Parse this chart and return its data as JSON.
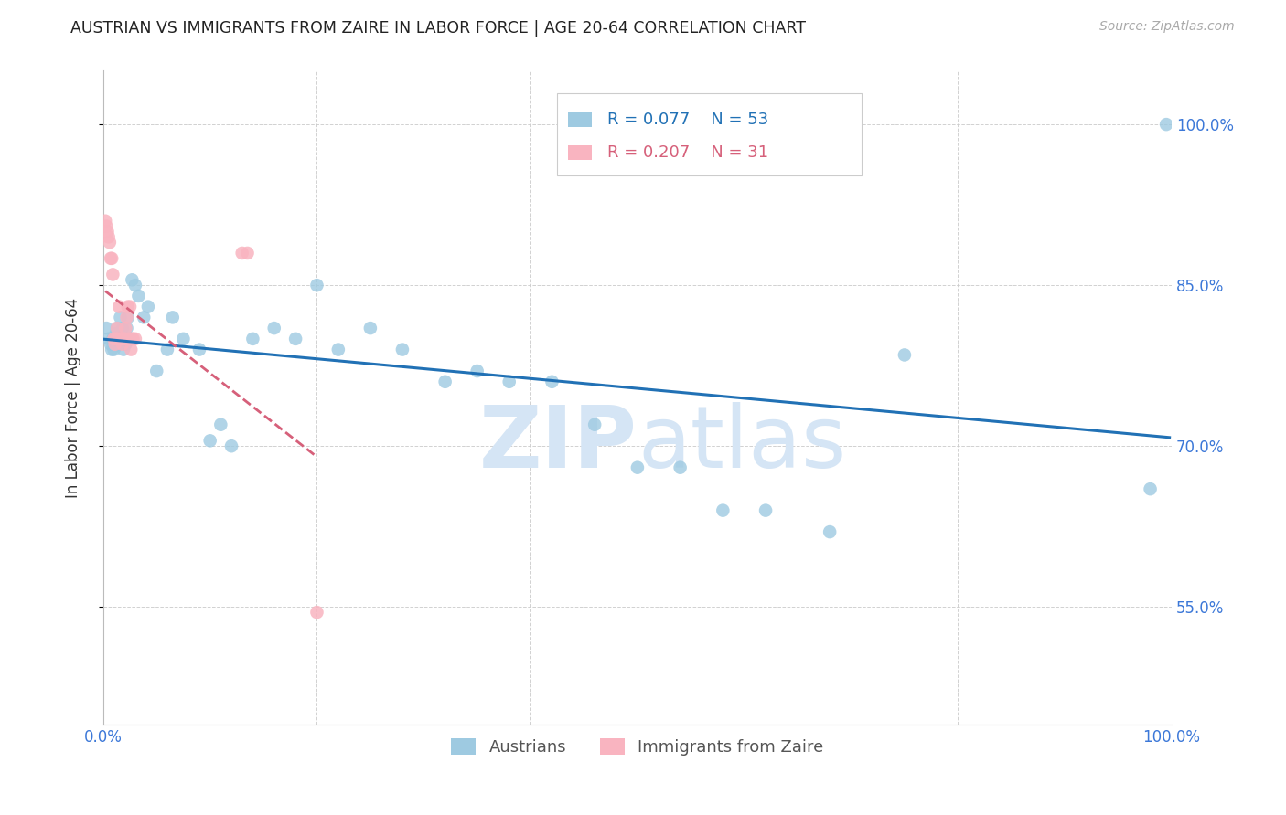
{
  "title": "AUSTRIAN VS IMMIGRANTS FROM ZAIRE IN LABOR FORCE | AGE 20-64 CORRELATION CHART",
  "source": "Source: ZipAtlas.com",
  "ylabel": "In Labor Force | Age 20-64",
  "ytick_labels": [
    "55.0%",
    "70.0%",
    "85.0%",
    "100.0%"
  ],
  "ytick_values": [
    0.55,
    0.7,
    0.85,
    1.0
  ],
  "xmin": 0.0,
  "xmax": 1.0,
  "ymin": 0.44,
  "ymax": 1.05,
  "legend_R1": "0.077",
  "legend_N1": "53",
  "legend_R2": "0.207",
  "legend_N2": "31",
  "blue_color": "#9ecae1",
  "pink_color": "#f9b4c0",
  "blue_line_color": "#2171b5",
  "pink_line_color": "#d6607a",
  "watermark_color": "#d5e5f5",
  "title_color": "#222222",
  "axis_label_color": "#3c78d8",
  "ylabel_color": "#333333",
  "austrians_label": "Austrians",
  "immigrants_label": "Immigrants from Zaire",
  "austrians_x": [
    0.003,
    0.005,
    0.007,
    0.008,
    0.009,
    0.01,
    0.011,
    0.012,
    0.013,
    0.014,
    0.015,
    0.016,
    0.017,
    0.018,
    0.019,
    0.02,
    0.021,
    0.022,
    0.023,
    0.025,
    0.027,
    0.03,
    0.033,
    0.038,
    0.042,
    0.05,
    0.06,
    0.065,
    0.075,
    0.09,
    0.1,
    0.11,
    0.12,
    0.14,
    0.16,
    0.18,
    0.2,
    0.22,
    0.25,
    0.28,
    0.32,
    0.35,
    0.38,
    0.42,
    0.46,
    0.5,
    0.54,
    0.58,
    0.62,
    0.68,
    0.75,
    0.98,
    0.995
  ],
  "austrians_y": [
    0.81,
    0.8,
    0.795,
    0.79,
    0.8,
    0.79,
    0.8,
    0.805,
    0.81,
    0.795,
    0.8,
    0.82,
    0.8,
    0.81,
    0.79,
    0.8,
    0.795,
    0.81,
    0.82,
    0.8,
    0.855,
    0.85,
    0.84,
    0.82,
    0.83,
    0.77,
    0.79,
    0.82,
    0.8,
    0.79,
    0.705,
    0.72,
    0.7,
    0.8,
    0.81,
    0.8,
    0.85,
    0.79,
    0.81,
    0.79,
    0.76,
    0.77,
    0.76,
    0.76,
    0.72,
    0.68,
    0.68,
    0.64,
    0.64,
    0.62,
    0.785,
    0.66,
    1.0
  ],
  "immigrants_x": [
    0.002,
    0.003,
    0.004,
    0.005,
    0.006,
    0.007,
    0.008,
    0.009,
    0.01,
    0.011,
    0.012,
    0.013,
    0.014,
    0.015,
    0.016,
    0.017,
    0.018,
    0.019,
    0.02,
    0.021,
    0.022,
    0.023,
    0.024,
    0.025,
    0.026,
    0.027,
    0.028,
    0.03,
    0.13,
    0.135,
    0.2
  ],
  "immigrants_y": [
    0.91,
    0.905,
    0.9,
    0.895,
    0.89,
    0.875,
    0.875,
    0.86,
    0.8,
    0.795,
    0.8,
    0.81,
    0.8,
    0.83,
    0.8,
    0.8,
    0.795,
    0.8,
    0.8,
    0.81,
    0.82,
    0.83,
    0.8,
    0.83,
    0.79,
    0.8,
    0.8,
    0.8,
    0.88,
    0.88,
    0.545
  ]
}
